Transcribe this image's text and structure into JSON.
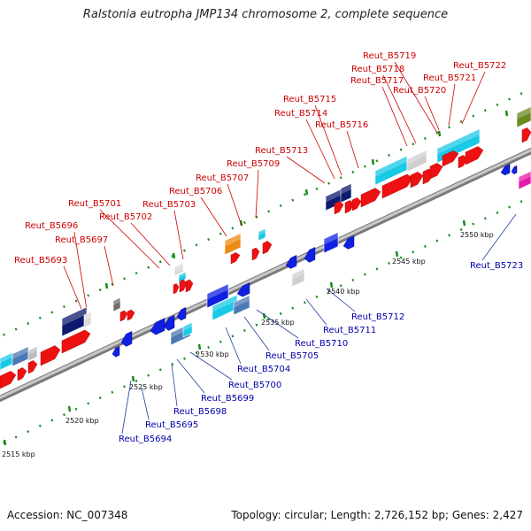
{
  "title": "Ralstonia eutropha JMP134 chromosome 2, complete sequence",
  "footer": {
    "accession": "Accession: NC_007348",
    "summary": "Topology: circular; Length: 2,726,152 bp; Genes: 2,427"
  },
  "colors": {
    "forward_label": "#cc0000",
    "reverse_label": "#0000aa",
    "backbone": "#9a9a9a",
    "track_dash": "#1a8a1a"
  },
  "ticks": [
    "2515 kbp",
    "2520 kbp",
    "2525 kbp",
    "2530 kbp",
    "2535 kbp",
    "2540 kbp",
    "2545 kbp",
    "2550 kbp"
  ],
  "forward_labels": [
    "Reut_B5693",
    "Reut_B5696",
    "Reut_B5697",
    "Reut_B5701",
    "Reut_B5702",
    "Reut_B5703",
    "Reut_B5706",
    "Reut_B5707",
    "Reut_B5709",
    "Reut_B5713",
    "Reut_B5714",
    "Reut_B5715",
    "Reut_B5716",
    "Reut_B5717",
    "Reut_B5718",
    "Reut_B5719",
    "Reut_B5720",
    "Reut_B5721",
    "Reut_B5722"
  ],
  "reverse_labels": [
    "Reut_B5694",
    "Reut_B5695",
    "Reut_B5698",
    "Reut_B5699",
    "Reut_B5700",
    "Reut_B5704",
    "Reut_B5705",
    "Reut_B5710",
    "Reut_B5711",
    "Reut_B5712",
    "Reut_B5723"
  ]
}
